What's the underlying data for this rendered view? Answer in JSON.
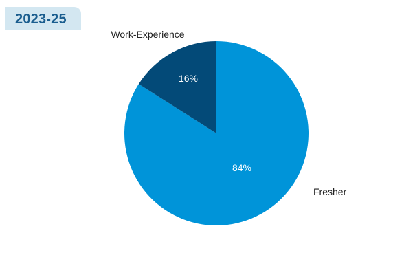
{
  "chart_data": {
    "type": "pie",
    "title": "2023-25",
    "categories": [
      "Fresher",
      "Work-Experience"
    ],
    "values": [
      84,
      16
    ],
    "value_labels": [
      "84%",
      "16%"
    ],
    "colors": [
      "#0094d9",
      "#034a78"
    ],
    "legend": "none"
  }
}
